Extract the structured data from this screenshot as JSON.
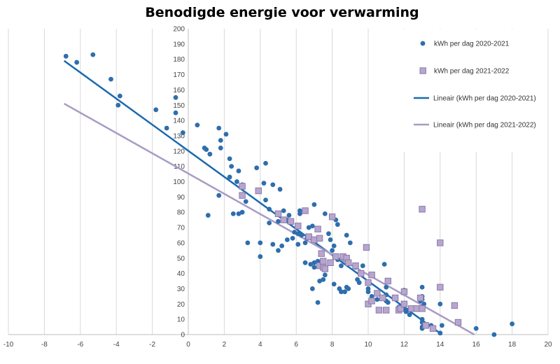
{
  "chart_data": {
    "type": "scatter",
    "title": "Benodigde energie voor verwarming",
    "xlim": [
      -10,
      20
    ],
    "ylim": [
      0,
      200
    ],
    "x_ticks": [
      -10,
      -8,
      -6,
      -4,
      -2,
      0,
      2,
      4,
      6,
      8,
      10,
      12,
      14,
      16,
      18,
      20
    ],
    "y_ticks": [
      0,
      10,
      20,
      30,
      40,
      50,
      60,
      70,
      80,
      90,
      100,
      110,
      120,
      130,
      140,
      150,
      160,
      170,
      180,
      190,
      200
    ],
    "grid": "vertical",
    "legend_position": "top-right",
    "series": [
      {
        "name": "kWh per dag 2020-2021",
        "kind": "scatter",
        "marker": "circle",
        "color": "#2E6EAD",
        "points": [
          [
            -6.8,
            182
          ],
          [
            -6.2,
            178
          ],
          [
            -5.3,
            183
          ],
          [
            -4.3,
            167
          ],
          [
            -3.8,
            156
          ],
          [
            -3.9,
            150
          ],
          [
            -1.8,
            147
          ],
          [
            -1.2,
            135
          ],
          [
            -0.7,
            155
          ],
          [
            -0.7,
            145
          ],
          [
            -0.3,
            132
          ],
          [
            0.5,
            137
          ],
          [
            0.9,
            122
          ],
          [
            1.0,
            121
          ],
          [
            1.2,
            118
          ],
          [
            1.1,
            78
          ],
          [
            1.7,
            135
          ],
          [
            1.8,
            127
          ],
          [
            1.8,
            122
          ],
          [
            2.1,
            131
          ],
          [
            2.3,
            115
          ],
          [
            2.4,
            110
          ],
          [
            2.3,
            103
          ],
          [
            1.7,
            91
          ],
          [
            2.7,
            100
          ],
          [
            2.8,
            107
          ],
          [
            3.0,
            98
          ],
          [
            3.2,
            87
          ],
          [
            2.5,
            79
          ],
          [
            2.8,
            79
          ],
          [
            3.0,
            80
          ],
          [
            3.3,
            60
          ],
          [
            3.8,
            109
          ],
          [
            4.3,
            112
          ],
          [
            4.2,
            99
          ],
          [
            4.7,
            98
          ],
          [
            5.1,
            95
          ],
          [
            4.0,
            60
          ],
          [
            4.0,
            51
          ],
          [
            4.7,
            59
          ],
          [
            5.0,
            55
          ],
          [
            5.2,
            58
          ],
          [
            4.3,
            88
          ],
          [
            4.5,
            82
          ],
          [
            5.3,
            81
          ],
          [
            5.6,
            78
          ],
          [
            4.5,
            73
          ],
          [
            5.0,
            74
          ],
          [
            5.5,
            75
          ],
          [
            5.5,
            62
          ],
          [
            5.8,
            63
          ],
          [
            5.9,
            67
          ],
          [
            6.1,
            59
          ],
          [
            6.2,
            81
          ],
          [
            6.3,
            65
          ],
          [
            6.5,
            60
          ],
          [
            6.6,
            63
          ],
          [
            6.7,
            70
          ],
          [
            6.9,
            71
          ],
          [
            7.0,
            85
          ],
          [
            6.5,
            81
          ],
          [
            6.2,
            79
          ],
          [
            6.1,
            66
          ],
          [
            6.5,
            47
          ],
          [
            6.8,
            46
          ],
          [
            7.0,
            47
          ],
          [
            7.0,
            44
          ],
          [
            7.2,
            48
          ],
          [
            6.9,
            30
          ],
          [
            7.2,
            21
          ],
          [
            7.3,
            35
          ],
          [
            7.5,
            36
          ],
          [
            7.6,
            39
          ],
          [
            7.8,
            66
          ],
          [
            7.9,
            62
          ],
          [
            8.1,
            58
          ],
          [
            8.2,
            75
          ],
          [
            8.3,
            72
          ],
          [
            8.0,
            55
          ],
          [
            8.3,
            49
          ],
          [
            8.5,
            45
          ],
          [
            7.6,
            79
          ],
          [
            8.1,
            33
          ],
          [
            8.4,
            30
          ],
          [
            8.5,
            28
          ],
          [
            8.7,
            28
          ],
          [
            8.8,
            31
          ],
          [
            8.9,
            30
          ],
          [
            8.8,
            65
          ],
          [
            9.0,
            60
          ],
          [
            9.3,
            44
          ],
          [
            9.4,
            36
          ],
          [
            9.5,
            34
          ],
          [
            9.7,
            45
          ],
          [
            10.0,
            30
          ],
          [
            10.0,
            28
          ],
          [
            10.2,
            25
          ],
          [
            10.5,
            23
          ],
          [
            10.9,
            46
          ],
          [
            11.0,
            31
          ],
          [
            11.0,
            26
          ],
          [
            11.0,
            22
          ],
          [
            11.1,
            21
          ],
          [
            11.7,
            18
          ],
          [
            12.0,
            29
          ],
          [
            12.0,
            17
          ],
          [
            12.1,
            15
          ],
          [
            12.2,
            16
          ],
          [
            12.3,
            13
          ],
          [
            13.0,
            31
          ],
          [
            13.0,
            25
          ],
          [
            13.0,
            23
          ],
          [
            12.9,
            22
          ],
          [
            13.1,
            20
          ],
          [
            13.0,
            10
          ],
          [
            13.0,
            8
          ],
          [
            13.0,
            5
          ],
          [
            13.0,
            4
          ],
          [
            13.5,
            6
          ],
          [
            14.0,
            20
          ],
          [
            14.1,
            6
          ],
          [
            14.0,
            1
          ],
          [
            16.0,
            4
          ],
          [
            17.0,
            0
          ],
          [
            18.0,
            7
          ]
        ]
      },
      {
        "name": "kWh per dag 2021-2022",
        "kind": "scatter",
        "marker": "square",
        "color": "#A493BE",
        "points": [
          [
            3.0,
            97
          ],
          [
            3.0,
            91
          ],
          [
            3.9,
            94
          ],
          [
            5.0,
            79
          ],
          [
            5.3,
            75
          ],
          [
            5.7,
            74
          ],
          [
            6.1,
            71
          ],
          [
            6.5,
            81
          ],
          [
            6.7,
            64
          ],
          [
            7.0,
            62
          ],
          [
            7.2,
            69
          ],
          [
            7.3,
            63
          ],
          [
            7.3,
            45
          ],
          [
            7.4,
            53
          ],
          [
            7.5,
            48
          ],
          [
            7.5,
            44
          ],
          [
            7.6,
            43
          ],
          [
            7.9,
            47
          ],
          [
            8.0,
            77
          ],
          [
            8.2,
            51
          ],
          [
            8.6,
            51
          ],
          [
            8.8,
            50
          ],
          [
            8.9,
            47
          ],
          [
            9.3,
            45
          ],
          [
            9.6,
            40
          ],
          [
            9.9,
            57
          ],
          [
            10.2,
            39
          ],
          [
            10.0,
            34
          ],
          [
            10.5,
            27
          ],
          [
            10.8,
            24
          ],
          [
            11.1,
            35
          ],
          [
            11.5,
            24
          ],
          [
            10.0,
            20
          ],
          [
            10.2,
            22
          ],
          [
            10.6,
            16
          ],
          [
            11.0,
            16
          ],
          [
            11.7,
            16
          ],
          [
            11.8,
            17
          ],
          [
            12.0,
            20
          ],
          [
            12.0,
            28
          ],
          [
            12.4,
            17
          ],
          [
            12.7,
            17
          ],
          [
            12.9,
            24
          ],
          [
            13.0,
            17
          ],
          [
            13.0,
            82
          ],
          [
            14.0,
            60
          ],
          [
            14.0,
            31
          ],
          [
            14.8,
            19
          ],
          [
            15.0,
            8
          ],
          [
            13.2,
            6
          ],
          [
            13.6,
            4
          ]
        ]
      },
      {
        "name": "Lineair (kWh per dag 2020-2021)",
        "kind": "trendline",
        "color": "#1A6AAE",
        "points": [
          [
            -6.9,
            179
          ],
          [
            14.1,
            0
          ]
        ]
      },
      {
        "name": "Lineair (kWh per dag 2021-2022)",
        "kind": "trendline",
        "color": "#A89BC4",
        "points": [
          [
            -6.9,
            151
          ],
          [
            15.9,
            0
          ]
        ]
      }
    ]
  }
}
